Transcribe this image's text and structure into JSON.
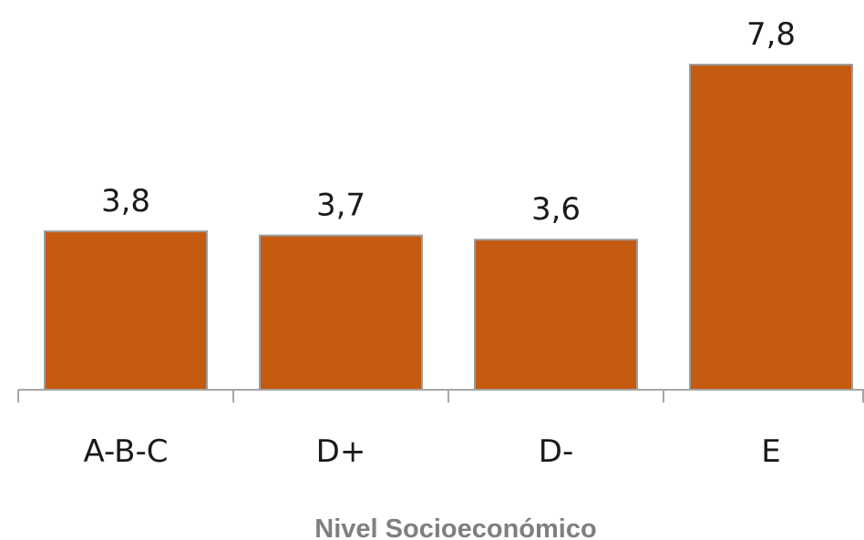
{
  "colors": {
    "bar": "#c55a11",
    "bar_border": "#9c9c9c",
    "axis": "#a6a6a6",
    "label_text": "#1a1a1a",
    "axis_title": "#7f7f7f"
  },
  "chart_data": {
    "type": "bar",
    "categories": [
      "A-B-C",
      "D+",
      "D-",
      "E"
    ],
    "values": [
      3.8,
      3.7,
      3.6,
      7.8
    ],
    "value_labels": [
      "3,8",
      "3,7",
      "3,6",
      "7,8"
    ],
    "title": "",
    "xlabel": "Nivel Socioeconómico",
    "ylabel": "",
    "ylim": [
      0,
      7.8
    ],
    "grid": false,
    "legend": "none"
  }
}
